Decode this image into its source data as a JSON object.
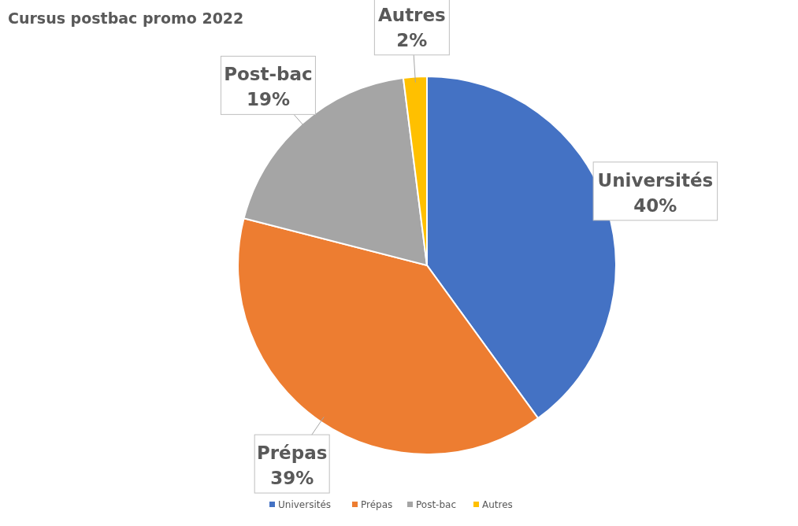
{
  "chart_data": {
    "type": "pie",
    "title": "Cursus postbac promo 2022",
    "categories": [
      "Universités",
      "Prépas",
      "Post-bac",
      "Autres"
    ],
    "values": [
      40,
      39,
      19,
      2
    ],
    "colors": [
      "#4472c4",
      "#ed7d31",
      "#a5a5a5",
      "#ffc000"
    ],
    "value_labels": [
      "40%",
      "39%",
      "19%",
      "2%"
    ],
    "legend": "bottom"
  }
}
